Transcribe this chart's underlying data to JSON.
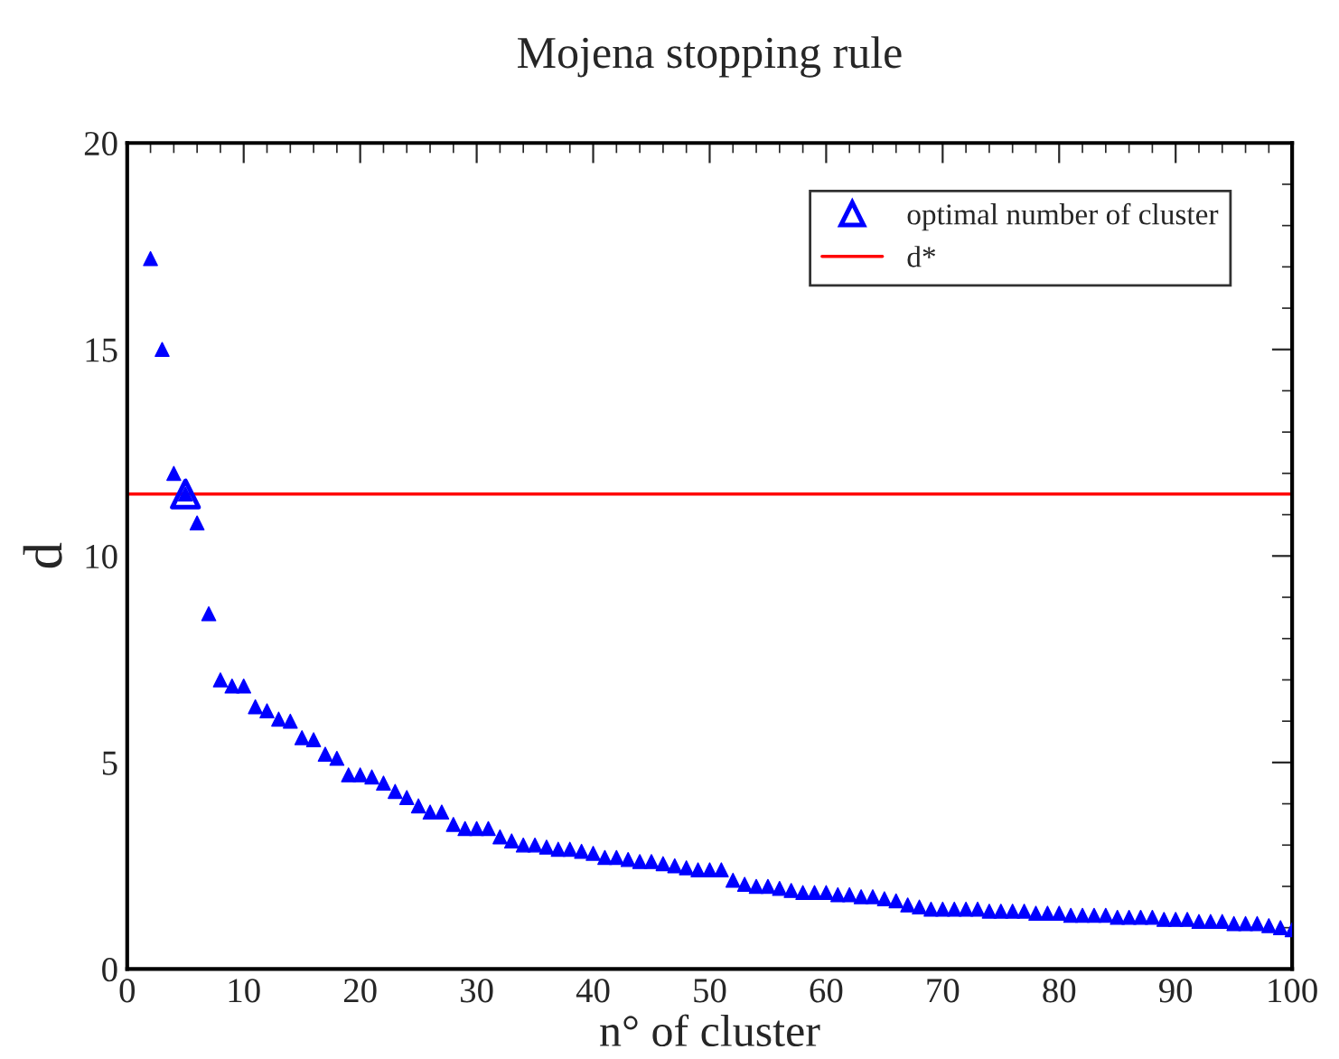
{
  "chart_data": {
    "type": "scatter",
    "title": "Mojena stopping rule",
    "xlabel": "n° of cluster",
    "ylabel": "d",
    "xlim": [
      0,
      100
    ],
    "ylim": [
      0,
      20
    ],
    "xticks": [
      0,
      10,
      20,
      30,
      40,
      50,
      60,
      70,
      80,
      90,
      100
    ],
    "yticks": [
      0,
      5,
      10,
      15,
      20
    ],
    "marker": "triangle",
    "grid": false,
    "legend": "top right",
    "series": [
      {
        "color": "#0000ff",
        "x": [
          2,
          3,
          4,
          5,
          6,
          7,
          8,
          9,
          10,
          11,
          12,
          13,
          14,
          15,
          16,
          17,
          18,
          19,
          20,
          21,
          22,
          23,
          24,
          25,
          26,
          27,
          28,
          29,
          30,
          31,
          32,
          33,
          34,
          35,
          36,
          37,
          38,
          39,
          40,
          41,
          42,
          43,
          44,
          45,
          46,
          47,
          48,
          49,
          50,
          51,
          52,
          53,
          54,
          55,
          56,
          57,
          58,
          59,
          60,
          61,
          62,
          63,
          64,
          65,
          66,
          67,
          68,
          69,
          70,
          71,
          72,
          73,
          74,
          75,
          76,
          77,
          78,
          79,
          80,
          81,
          82,
          83,
          84,
          85,
          86,
          87,
          88,
          89,
          90,
          91,
          92,
          93,
          94,
          95,
          96,
          97,
          98,
          99,
          100
        ],
        "values": [
          17.2,
          15.0,
          12.0,
          11.5,
          10.8,
          8.6,
          7.0,
          6.85,
          6.85,
          6.35,
          6.25,
          6.05,
          6.0,
          5.6,
          5.55,
          5.2,
          5.1,
          4.7,
          4.7,
          4.65,
          4.5,
          4.3,
          4.15,
          3.95,
          3.8,
          3.8,
          3.5,
          3.4,
          3.4,
          3.4,
          3.2,
          3.1,
          3.0,
          3.0,
          2.95,
          2.9,
          2.9,
          2.85,
          2.8,
          2.7,
          2.7,
          2.65,
          2.6,
          2.6,
          2.55,
          2.5,
          2.45,
          2.4,
          2.4,
          2.4,
          2.15,
          2.05,
          2.0,
          2.0,
          1.95,
          1.9,
          1.85,
          1.85,
          1.85,
          1.8,
          1.8,
          1.75,
          1.75,
          1.7,
          1.65,
          1.55,
          1.5,
          1.45,
          1.45,
          1.45,
          1.45,
          1.45,
          1.4,
          1.4,
          1.4,
          1.4,
          1.35,
          1.35,
          1.35,
          1.3,
          1.3,
          1.3,
          1.3,
          1.25,
          1.25,
          1.25,
          1.25,
          1.2,
          1.2,
          1.2,
          1.15,
          1.15,
          1.15,
          1.1,
          1.1,
          1.1,
          1.05,
          1.0,
          0.95
        ]
      },
      {
        "name": "optimal number of cluster",
        "color": "#0000ff",
        "x": [
          5
        ],
        "values": [
          11.5
        ]
      }
    ],
    "ref_lines": [
      {
        "axis": "y",
        "value": 11.5,
        "label": "d*",
        "color": "#ff0000"
      }
    ]
  }
}
